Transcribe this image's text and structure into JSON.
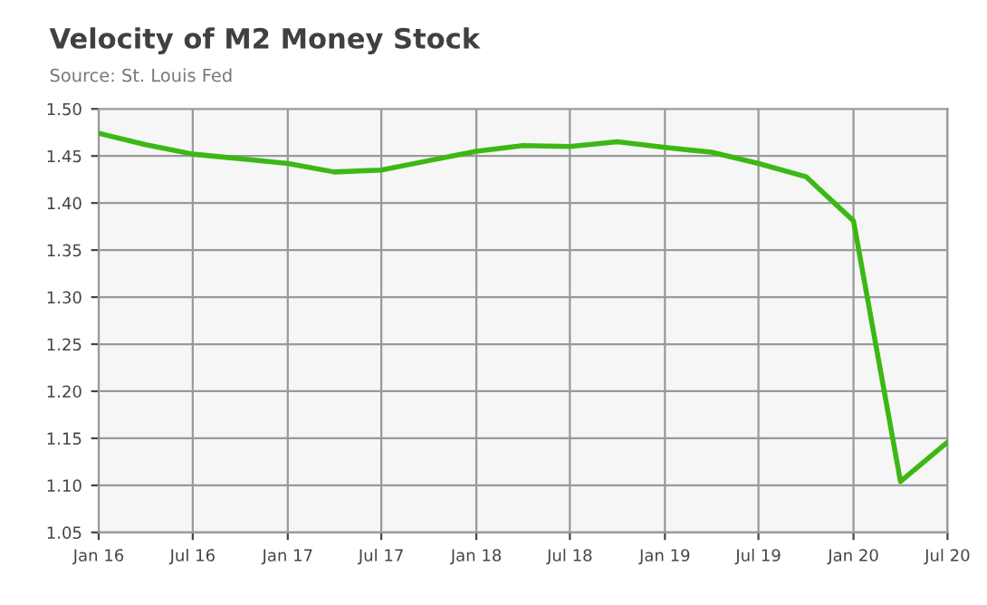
{
  "chart_data": {
    "type": "line",
    "title": "Velocity of M2 Money Stock",
    "annotations": [
      "Source: St. Louis Fed"
    ],
    "x": [
      "2016-01",
      "2016-04",
      "2016-07",
      "2016-10",
      "2017-01",
      "2017-04",
      "2017-07",
      "2017-10",
      "2018-01",
      "2018-04",
      "2018-07",
      "2018-10",
      "2019-01",
      "2019-04",
      "2019-07",
      "2019-10",
      "2020-01",
      "2020-04",
      "2020-07"
    ],
    "series": [
      {
        "color": "#3cb815",
        "values": [
          1.474,
          1.462,
          1.452,
          1.447,
          1.442,
          1.433,
          1.435,
          1.445,
          1.455,
          1.461,
          1.46,
          1.465,
          1.459,
          1.454,
          1.442,
          1.428,
          1.381,
          1.104,
          1.146
        ]
      }
    ],
    "xlim": [
      "2016-01",
      "2020-07"
    ],
    "xticks": [
      {
        "value": "2016-01",
        "label": "Jan 16"
      },
      {
        "value": "2016-07",
        "label": "Jul 16"
      },
      {
        "value": "2017-01",
        "label": "Jan 17"
      },
      {
        "value": "2017-07",
        "label": "Jul 17"
      },
      {
        "value": "2018-01",
        "label": "Jan 18"
      },
      {
        "value": "2018-07",
        "label": "Jul 18"
      },
      {
        "value": "2019-01",
        "label": "Jan 19"
      },
      {
        "value": "2019-07",
        "label": "Jul 19"
      },
      {
        "value": "2020-01",
        "label": "Jan 20"
      },
      {
        "value": "2020-07",
        "label": "Jul 20"
      }
    ],
    "ylim": [
      1.05,
      1.5
    ],
    "yticks": [
      {
        "value": 1.05,
        "label": "1.05"
      },
      {
        "value": 1.1,
        "label": "1.10"
      },
      {
        "value": 1.15,
        "label": "1.15"
      },
      {
        "value": 1.2,
        "label": "1.20"
      },
      {
        "value": 1.25,
        "label": "1.25"
      },
      {
        "value": 1.3,
        "label": "1.30"
      },
      {
        "value": 1.35,
        "label": "1.35"
      },
      {
        "value": 1.4,
        "label": "1.40"
      },
      {
        "value": 1.45,
        "label": "1.45"
      },
      {
        "value": 1.5,
        "label": "1.50"
      }
    ],
    "grid": true,
    "legend": false,
    "marker": "none",
    "line_style": "solid"
  }
}
